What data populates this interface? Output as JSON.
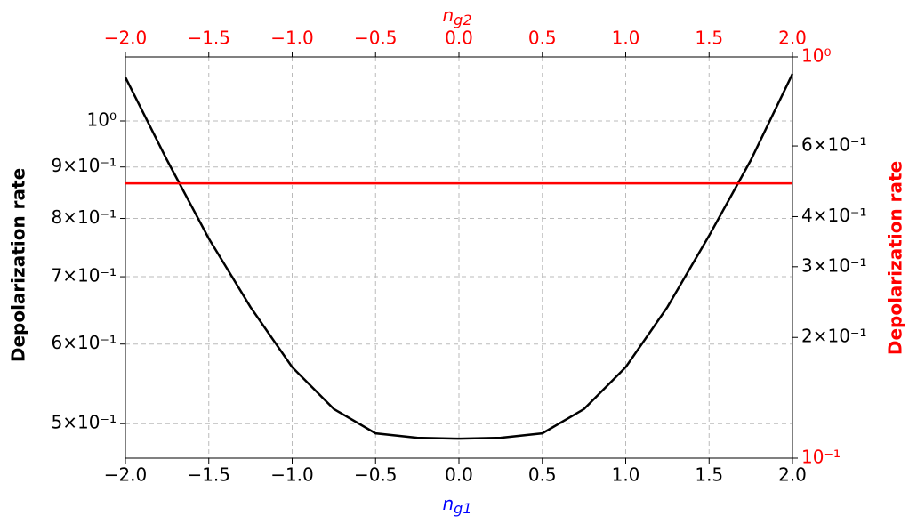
{
  "chart_data": {
    "type": "line",
    "xlabel": "n",
    "xlabel_sub": "g1",
    "x2label": "n",
    "x2label_sub": "g2",
    "ylabel": "Depolarization rate",
    "y2label": "Depolarization rate",
    "xlim": [
      -2,
      2
    ],
    "x2lim": [
      -2,
      2
    ],
    "xticks": [
      {
        "value": -2,
        "label": "−2.0"
      },
      {
        "value": -1.5,
        "label": "−1.5"
      },
      {
        "value": -1,
        "label": "−1.0"
      },
      {
        "value": -0.5,
        "label": "−0.5"
      },
      {
        "value": 0,
        "label": "0.0"
      },
      0.5,
      {
        "value": 1,
        "label": "1.0"
      },
      1.5,
      {
        "value": 2,
        "label": "2.0"
      }
    ],
    "x2ticks": [
      {
        "value": -2,
        "label": "−2.0"
      },
      {
        "value": -1.5,
        "label": "−1.5"
      },
      {
        "value": -1,
        "label": "−1.0"
      },
      {
        "value": -0.5,
        "label": "−0.5"
      },
      {
        "value": 0,
        "label": "0.0"
      },
      0.5,
      {
        "value": 1,
        "label": "1.0"
      },
      1.5,
      {
        "value": 2,
        "label": "2.0"
      }
    ],
    "ylog": true,
    "ylim": [
      0.462,
      1.158
    ],
    "yticks": [
      {
        "value": 0.5,
        "label": "5×10⁻¹"
      },
      {
        "value": 0.6,
        "label": "6×10⁻¹"
      },
      {
        "value": 0.7,
        "label": "7×10⁻¹"
      },
      {
        "value": 0.8,
        "label": "8×10⁻¹"
      },
      {
        "value": 0.9,
        "label": "9×10⁻¹"
      },
      {
        "value": 1,
        "label": "10⁰"
      }
    ],
    "y2log": true,
    "y2lim": [
      0.1,
      1
    ],
    "y2ticks": [
      {
        "value": 0.1,
        "label": "10⁻¹"
      },
      {
        "value": 0.2,
        "label": "2×10⁻¹"
      },
      {
        "value": 0.3,
        "label": "3×10⁻¹"
      },
      {
        "value": 0.4,
        "label": "4×10⁻¹"
      },
      {
        "value": 0.6,
        "label": "6×10⁻¹"
      },
      {
        "value": 1,
        "label": "10⁰"
      }
    ],
    "grid": true,
    "series": [
      {
        "color": "#000000",
        "x": [
          -2,
          -1.75,
          -1.5,
          -1.25,
          -1,
          -0.75,
          -0.5,
          -0.25,
          0,
          0.25,
          0.5,
          0.75,
          1,
          1.25,
          1.5,
          1.75,
          2
        ],
        "values": [
          1.105,
          0.914,
          0.764,
          0.653,
          0.569,
          0.517,
          0.489,
          0.484,
          0.483,
          0.484,
          0.489,
          0.517,
          0.569,
          0.653,
          0.769,
          0.914,
          1.114
        ]
      },
      {
        "color": "#ff0000",
        "axis": "y2",
        "x": [
          -2,
          2
        ],
        "values": [
          0.484,
          0.484
        ]
      }
    ]
  }
}
